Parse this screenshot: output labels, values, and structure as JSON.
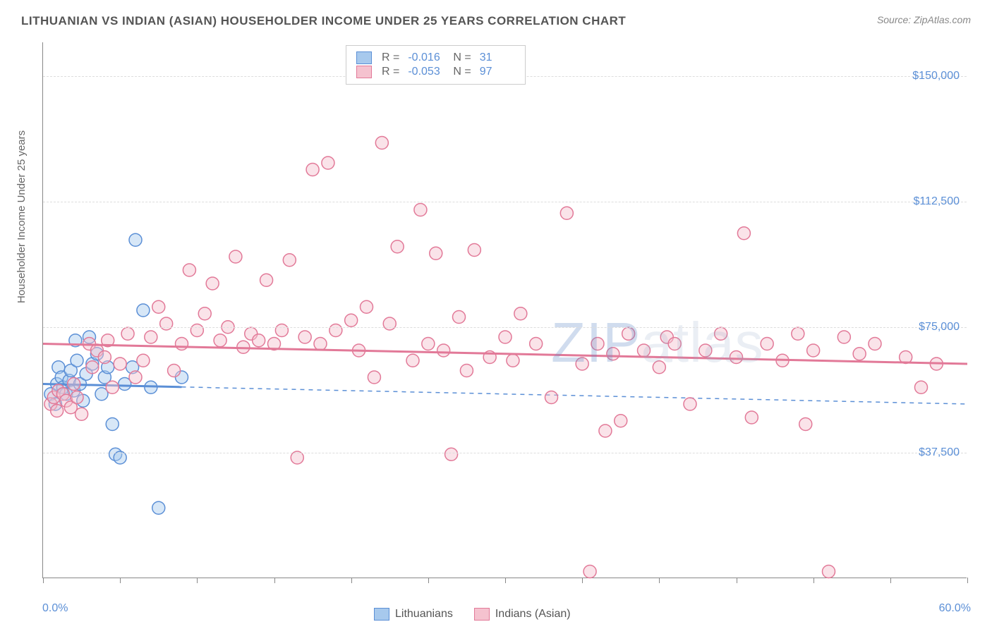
{
  "title": "LITHUANIAN VS INDIAN (ASIAN) HOUSEHOLDER INCOME UNDER 25 YEARS CORRELATION CHART",
  "source": "Source: ZipAtlas.com",
  "yaxis_title": "Householder Income Under 25 years",
  "watermark_a": "ZIP",
  "watermark_b": "atlas",
  "chart": {
    "type": "scatter",
    "background_color": "#ffffff",
    "grid_color": "#dddddd",
    "axis_color": "#888888",
    "tick_label_color": "#5b8fd6",
    "xlim": [
      0,
      60
    ],
    "ylim": [
      0,
      160000
    ],
    "x_min_label": "0.0%",
    "x_max_label": "60.0%",
    "xtick_positions": [
      0,
      5,
      10,
      15,
      20,
      25,
      30,
      35,
      40,
      45,
      50,
      55,
      60
    ],
    "yticks": [
      {
        "v": 37500,
        "label": "$37,500"
      },
      {
        "v": 75000,
        "label": "$75,000"
      },
      {
        "v": 112500,
        "label": "$112,500"
      },
      {
        "v": 150000,
        "label": "$150,000"
      }
    ],
    "marker_radius": 9,
    "marker_opacity": 0.45,
    "trend_line_width": 3,
    "series": [
      {
        "name": "Lithuanians",
        "color_fill": "#a7c9ed",
        "color_stroke": "#5b8fd6",
        "R": "-0.016",
        "N": "31",
        "trend": {
          "y_at_xmin": 58000,
          "y_at_xmax": 52000,
          "solid_until_x": 9,
          "dash": true
        },
        "points": [
          [
            0.5,
            55000
          ],
          [
            0.8,
            52000
          ],
          [
            0.9,
            58000
          ],
          [
            1.0,
            63000
          ],
          [
            1.2,
            60000
          ],
          [
            1.3,
            57000
          ],
          [
            1.5,
            55000
          ],
          [
            1.7,
            59000
          ],
          [
            1.8,
            62000
          ],
          [
            2.0,
            56000
          ],
          [
            2.1,
            71000
          ],
          [
            2.2,
            65000
          ],
          [
            2.4,
            58000
          ],
          [
            2.6,
            53000
          ],
          [
            2.8,
            61000
          ],
          [
            3.0,
            72000
          ],
          [
            3.2,
            64000
          ],
          [
            3.5,
            67000
          ],
          [
            3.8,
            55000
          ],
          [
            4.0,
            60000
          ],
          [
            4.2,
            63000
          ],
          [
            4.5,
            46000
          ],
          [
            4.7,
            37000
          ],
          [
            5.0,
            36000
          ],
          [
            5.3,
            58000
          ],
          [
            5.8,
            63000
          ],
          [
            6.0,
            101000
          ],
          [
            6.5,
            80000
          ],
          [
            7.0,
            57000
          ],
          [
            7.5,
            21000
          ],
          [
            9.0,
            60000
          ]
        ]
      },
      {
        "name": "Indians (Asian)",
        "color_fill": "#f5c2cf",
        "color_stroke": "#e27998",
        "R": "-0.053",
        "N": "97",
        "trend": {
          "y_at_xmin": 70000,
          "y_at_xmax": 64000,
          "solid_until_x": 60,
          "dash": false
        },
        "points": [
          [
            0.5,
            52000
          ],
          [
            0.7,
            54000
          ],
          [
            0.9,
            50000
          ],
          [
            1.0,
            56000
          ],
          [
            1.3,
            55000
          ],
          [
            1.5,
            53000
          ],
          [
            1.8,
            51000
          ],
          [
            2.0,
            58000
          ],
          [
            2.2,
            54000
          ],
          [
            2.5,
            49000
          ],
          [
            3.0,
            70000
          ],
          [
            3.2,
            63000
          ],
          [
            3.5,
            68000
          ],
          [
            4.0,
            66000
          ],
          [
            4.2,
            71000
          ],
          [
            4.5,
            57000
          ],
          [
            5.0,
            64000
          ],
          [
            5.5,
            73000
          ],
          [
            6.0,
            60000
          ],
          [
            6.5,
            65000
          ],
          [
            7.0,
            72000
          ],
          [
            7.5,
            81000
          ],
          [
            8.0,
            76000
          ],
          [
            8.5,
            62000
          ],
          [
            9.0,
            70000
          ],
          [
            9.5,
            92000
          ],
          [
            10.0,
            74000
          ],
          [
            10.5,
            79000
          ],
          [
            11.0,
            88000
          ],
          [
            11.5,
            71000
          ],
          [
            12.0,
            75000
          ],
          [
            12.5,
            96000
          ],
          [
            13.0,
            69000
          ],
          [
            13.5,
            73000
          ],
          [
            14.0,
            71000
          ],
          [
            14.5,
            89000
          ],
          [
            15.0,
            70000
          ],
          [
            15.5,
            74000
          ],
          [
            16.0,
            95000
          ],
          [
            16.5,
            36000
          ],
          [
            17.0,
            72000
          ],
          [
            17.5,
            122000
          ],
          [
            18.0,
            70000
          ],
          [
            18.5,
            124000
          ],
          [
            19.0,
            74000
          ],
          [
            20.0,
            77000
          ],
          [
            20.5,
            68000
          ],
          [
            21.0,
            81000
          ],
          [
            21.5,
            60000
          ],
          [
            22.0,
            130000
          ],
          [
            22.5,
            76000
          ],
          [
            23.0,
            99000
          ],
          [
            24.0,
            65000
          ],
          [
            24.5,
            110000
          ],
          [
            25.0,
            70000
          ],
          [
            25.5,
            97000
          ],
          [
            26.0,
            68000
          ],
          [
            26.5,
            37000
          ],
          [
            27.0,
            78000
          ],
          [
            27.5,
            62000
          ],
          [
            28.0,
            98000
          ],
          [
            29.0,
            66000
          ],
          [
            30.0,
            72000
          ],
          [
            30.5,
            65000
          ],
          [
            31.0,
            79000
          ],
          [
            32.0,
            70000
          ],
          [
            33.0,
            54000
          ],
          [
            34.0,
            109000
          ],
          [
            35.0,
            64000
          ],
          [
            35.5,
            2000
          ],
          [
            36.0,
            70000
          ],
          [
            36.5,
            44000
          ],
          [
            37.0,
            67000
          ],
          [
            37.5,
            47000
          ],
          [
            38.0,
            73000
          ],
          [
            39.0,
            68000
          ],
          [
            40.0,
            63000
          ],
          [
            40.5,
            72000
          ],
          [
            41.0,
            70000
          ],
          [
            42.0,
            52000
          ],
          [
            43.0,
            68000
          ],
          [
            44.0,
            73000
          ],
          [
            45.0,
            66000
          ],
          [
            45.5,
            103000
          ],
          [
            46.0,
            48000
          ],
          [
            47.0,
            70000
          ],
          [
            48.0,
            65000
          ],
          [
            49.0,
            73000
          ],
          [
            49.5,
            46000
          ],
          [
            50.0,
            68000
          ],
          [
            51.0,
            2000
          ],
          [
            52.0,
            72000
          ],
          [
            53.0,
            67000
          ],
          [
            54.0,
            70000
          ],
          [
            56.0,
            66000
          ],
          [
            57.0,
            57000
          ],
          [
            58.0,
            64000
          ]
        ]
      }
    ]
  },
  "bottom_legend": [
    {
      "label": "Lithuanians",
      "fill": "#a7c9ed",
      "stroke": "#5b8fd6"
    },
    {
      "label": "Indians (Asian)",
      "fill": "#f5c2cf",
      "stroke": "#e27998"
    }
  ]
}
